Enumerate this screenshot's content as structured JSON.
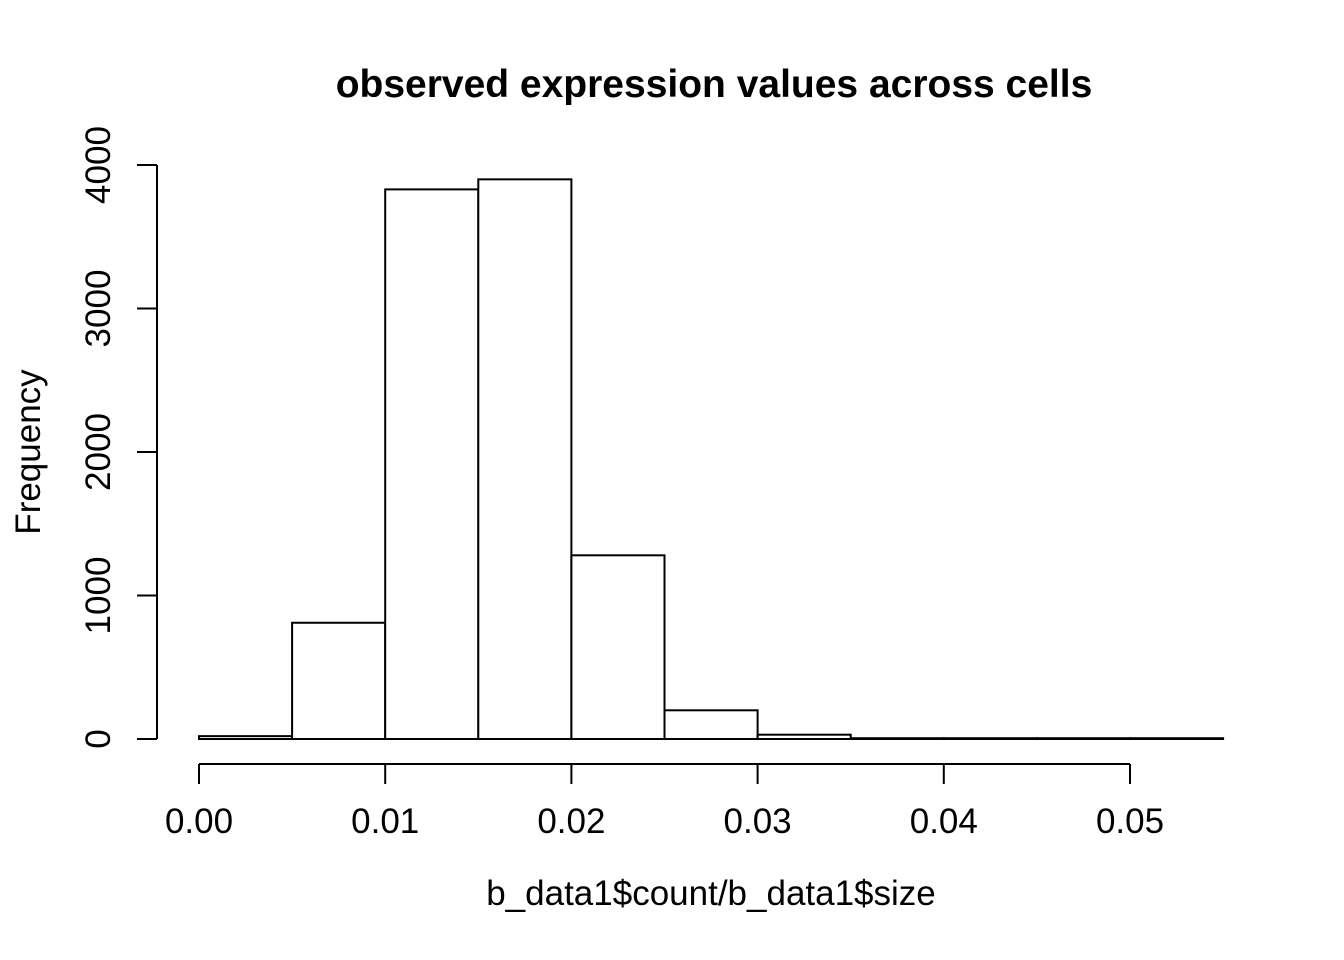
{
  "chart_data": {
    "type": "bar",
    "subtype": "histogram",
    "title": "observed expression values across cells",
    "xlabel": "b_data1$count/b_data1$size",
    "ylabel": "Frequency",
    "bin_edges": [
      0.0,
      0.005,
      0.01,
      0.015,
      0.02,
      0.025,
      0.03,
      0.035,
      0.04,
      0.045,
      0.05,
      0.055
    ],
    "counts": [
      20,
      810,
      3830,
      3900,
      1280,
      200,
      30,
      5,
      4,
      3,
      2
    ],
    "x_tick_values": [
      0.0,
      0.01,
      0.02,
      0.03,
      0.04,
      0.05
    ],
    "x_tick_labels": [
      "0.00",
      "0.01",
      "0.02",
      "0.03",
      "0.04",
      "0.05"
    ],
    "y_tick_values": [
      0,
      1000,
      2000,
      3000,
      4000
    ],
    "y_tick_labels": [
      "0",
      "1000",
      "2000",
      "3000",
      "4000"
    ],
    "xlim": [
      0,
      0.055
    ],
    "ylim": [
      0,
      4000
    ],
    "grid": "off",
    "legend_position": "none",
    "bar_fill": "#ffffff",
    "line_color": "#000000",
    "background": "#ffffff"
  }
}
